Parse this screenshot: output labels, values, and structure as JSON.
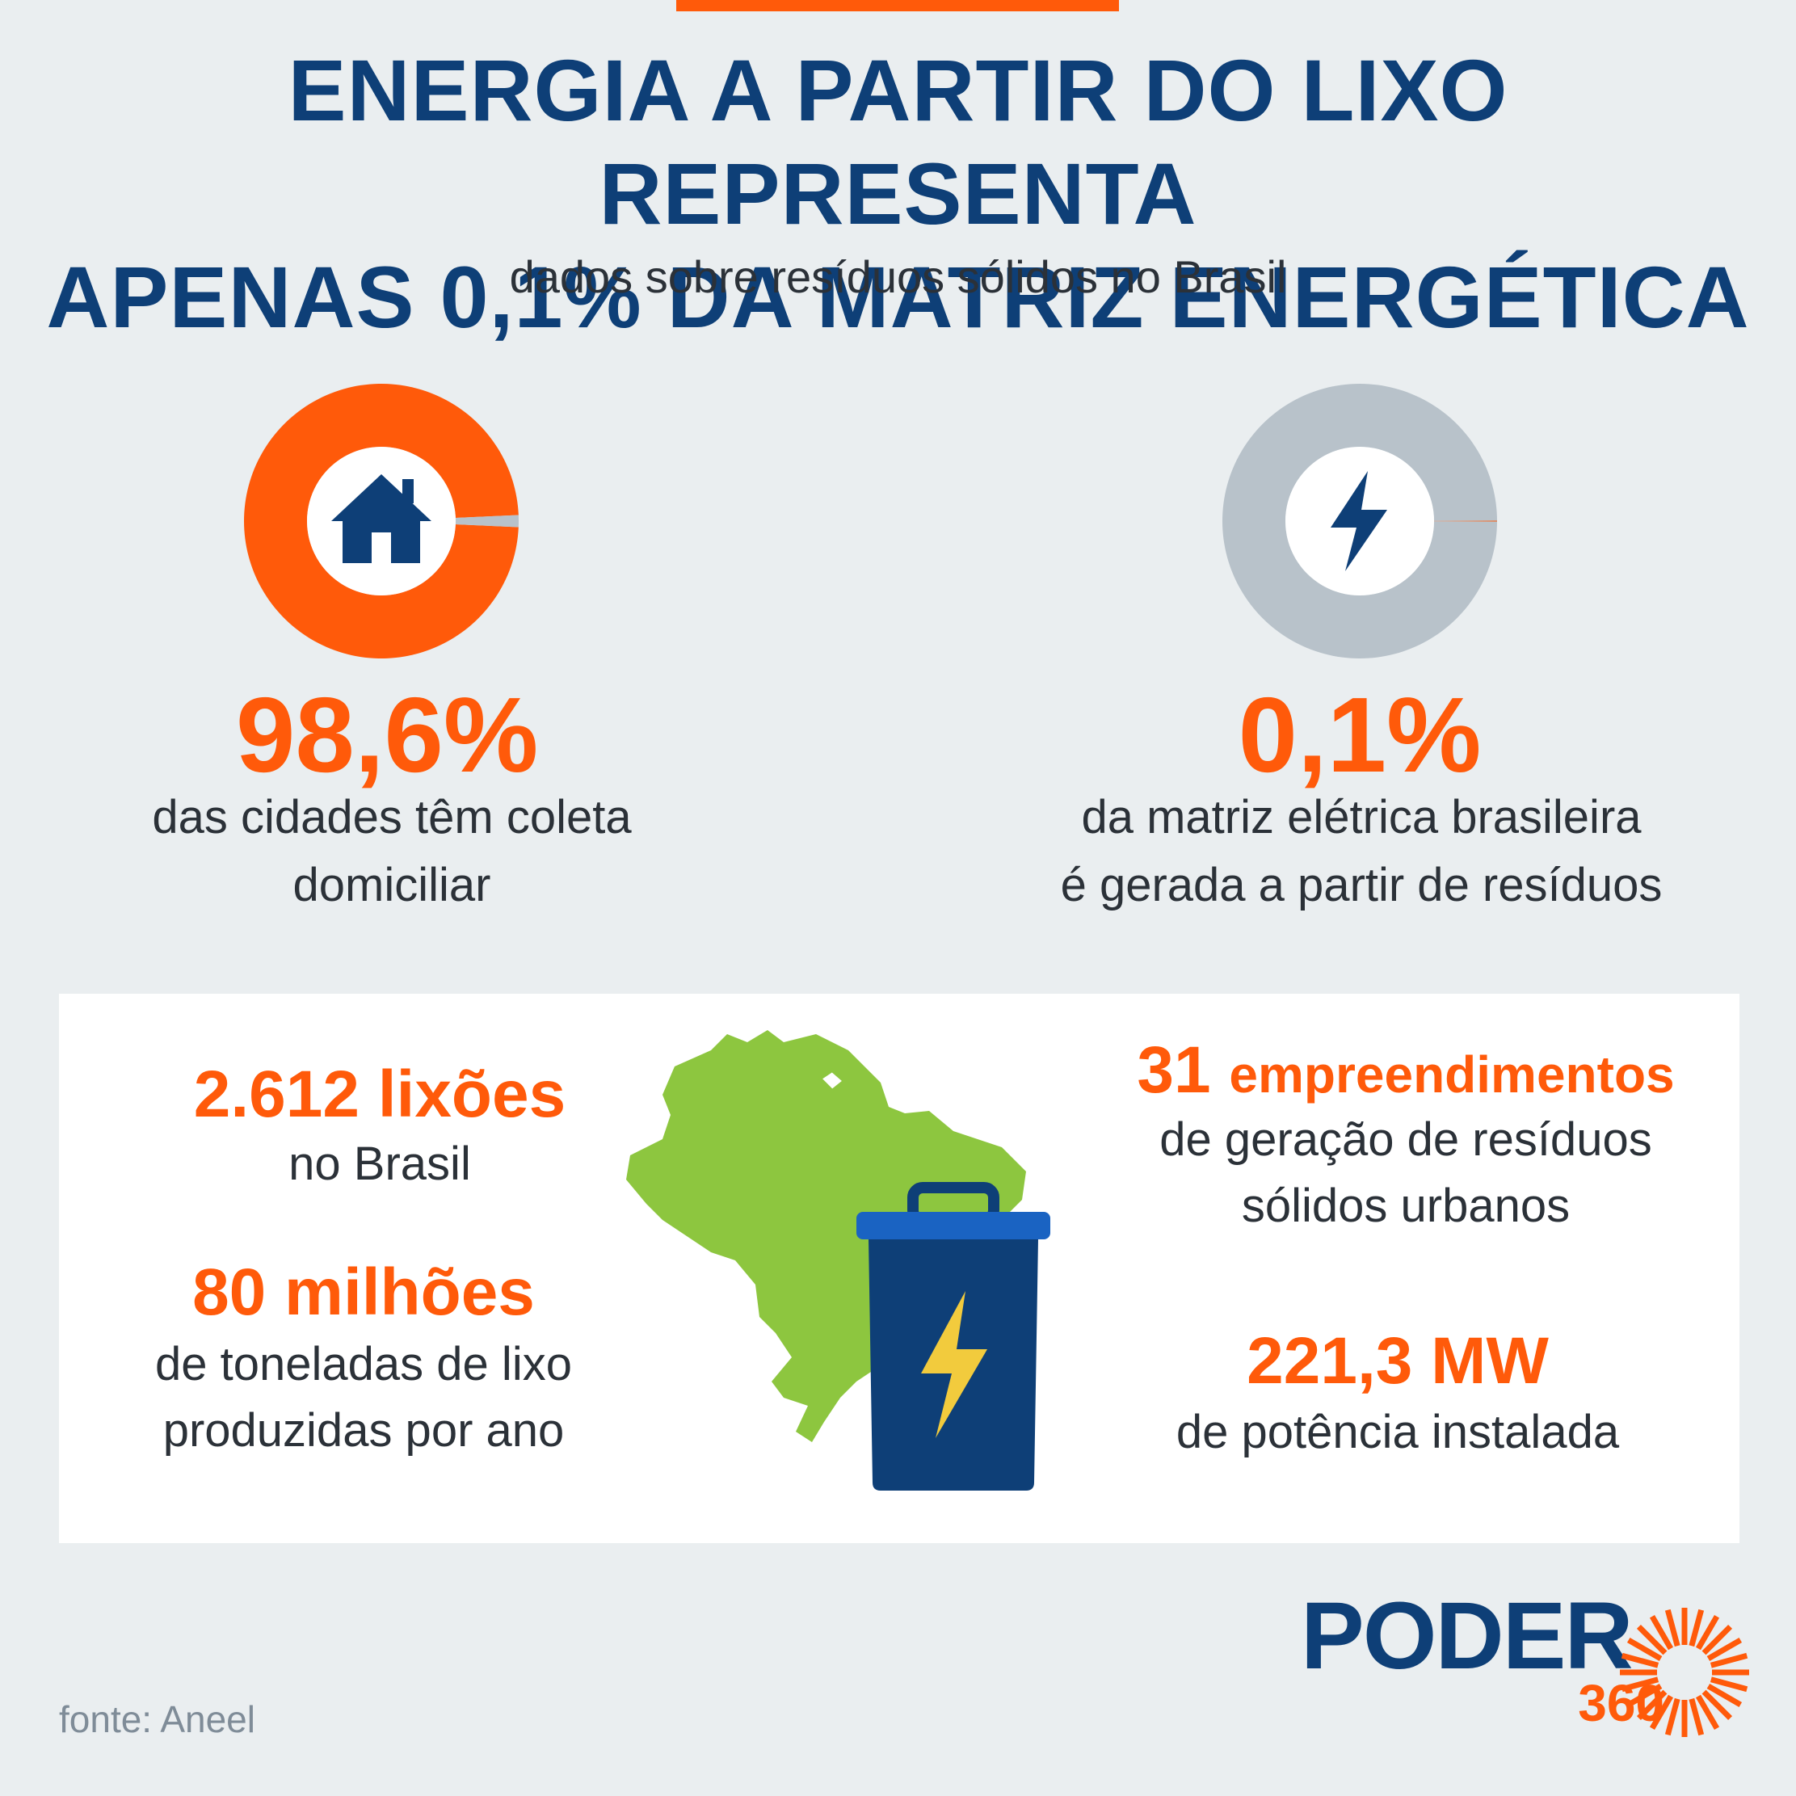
{
  "title_line1": "ENERGIA A PARTIR DO LIXO REPRESENTA",
  "title_line2": "APENAS 0,1% DA MATRIZ ENERGÉTICA",
  "subtitle": "dados sobre resíduos sólidos no Brasil",
  "chart_data": [
    {
      "type": "pie",
      "categories": [
        "cidades com coleta domiciliar",
        "demais"
      ],
      "values": [
        98.6,
        1.4
      ],
      "colors": [
        "#ff5a0a",
        "#b8c2ca"
      ],
      "label_value": "98,6%",
      "description_line1": "das cidades têm coleta",
      "description_line2": "domiciliar",
      "icon": "house-icon"
    },
    {
      "type": "pie",
      "categories": [
        "gerada a partir de resíduos",
        "demais fontes"
      ],
      "values": [
        0.1,
        99.9
      ],
      "colors": [
        "#ff5a0a",
        "#b8c2ca"
      ],
      "label_value": "0,1%",
      "description_line1": "da matriz elétrica brasileira",
      "description_line2": "é gerada a partir de resíduos",
      "icon": "lightning-bolt-icon"
    }
  ],
  "stats": {
    "dumps": {
      "number": "2.612 lixões",
      "text_line1": "no Brasil"
    },
    "tons": {
      "number": "80 milhões",
      "text_line1": "de toneladas de lixo",
      "text_line2": "produzidas por ano"
    },
    "ventures": {
      "number": "31",
      "number_suffix": "empreendimentos",
      "text_line1": "de geração de resíduos",
      "text_line2": "sólidos urbanos"
    },
    "power": {
      "number": "221,3 MW",
      "text_line1": "de potência instalada"
    }
  },
  "illustration": {
    "map": "brazil-map-icon",
    "bin": "trash-bin-icon",
    "bolt": "lightning-bolt-icon"
  },
  "source": "fonte: Aneel",
  "logo": {
    "word": "PODER",
    "number": "360"
  },
  "colors": {
    "navy": "#0e3f77",
    "orange": "#ff5a0a",
    "gray": "#b8c2ca",
    "green": "#8dc63f",
    "background": "#eaeef0"
  }
}
